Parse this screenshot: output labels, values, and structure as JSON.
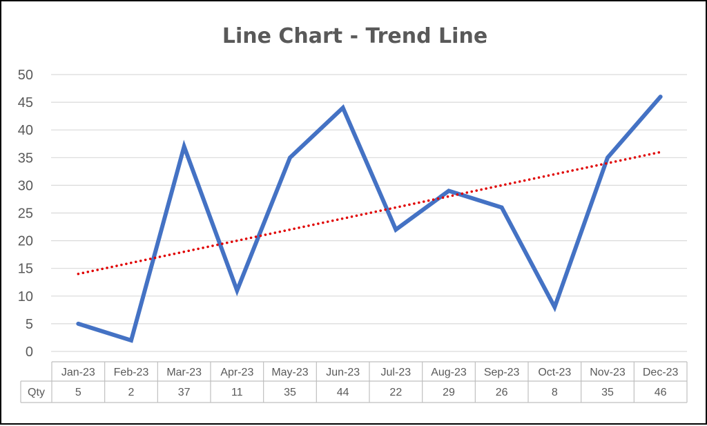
{
  "chart_data": {
    "type": "line",
    "title": "Line Chart - Trend Line",
    "categories": [
      "Jan-23",
      "Feb-23",
      "Mar-23",
      "Apr-23",
      "May-23",
      "Jun-23",
      "Jul-23",
      "Aug-23",
      "Sep-23",
      "Oct-23",
      "Nov-23",
      "Dec-23"
    ],
    "series": [
      {
        "name": "Qty",
        "values": [
          5,
          2,
          37,
          11,
          35,
          44,
          22,
          29,
          26,
          8,
          35,
          46
        ],
        "color": "#4472C4"
      }
    ],
    "trendline": {
      "type": "linear",
      "start": 14,
      "end": 36,
      "color": "#E00000",
      "style": "dotted"
    },
    "y_ticks": [
      "0",
      "5",
      "10",
      "15",
      "20",
      "25",
      "30",
      "35",
      "40",
      "45",
      "50"
    ],
    "ylim": [
      0,
      50
    ],
    "grid": true,
    "data_table": {
      "row_label": "Qty"
    },
    "colors": {
      "gridline": "#D9D9D9",
      "text": "#595959",
      "table_border": "#BFBFBF"
    }
  }
}
